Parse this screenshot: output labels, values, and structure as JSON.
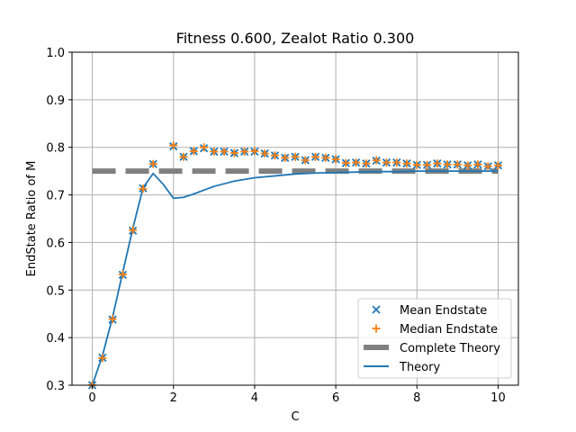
{
  "chart_data": {
    "type": "scatter",
    "title": "Fitness 0.600, Zealot Ratio 0.300",
    "xlabel": "C",
    "ylabel": "EndState Ratio of M",
    "xlim": [
      -0.5,
      10.5
    ],
    "ylim": [
      0.3,
      1.0
    ],
    "xticks": [
      0,
      2,
      4,
      6,
      8,
      10
    ],
    "yticks": [
      0.3,
      0.4,
      0.5,
      0.6,
      0.7,
      0.8,
      0.9,
      1.0
    ],
    "grid": true,
    "legend_position": "lower-right",
    "colors": {
      "mean": "#1f77b4",
      "median": "#ff7f0e",
      "complete_theory": "#808080",
      "theory": "#1f77b4"
    },
    "x": [
      0.0,
      0.25,
      0.5,
      0.75,
      1.0,
      1.25,
      1.5,
      2.0,
      2.25,
      2.5,
      2.75,
      3.0,
      3.25,
      3.5,
      3.75,
      4.0,
      4.25,
      4.5,
      4.75,
      5.0,
      5.25,
      5.5,
      5.75,
      6.0,
      6.25,
      6.5,
      6.75,
      7.0,
      7.25,
      7.5,
      7.75,
      8.0,
      8.25,
      8.5,
      8.75,
      9.0,
      9.25,
      9.5,
      9.75,
      10.0
    ],
    "series": [
      {
        "name": "Mean Endstate",
        "marker": "x",
        "values": [
          0.3,
          0.358,
          0.438,
          0.532,
          0.625,
          0.714,
          0.765,
          0.802,
          0.78,
          0.792,
          0.798,
          0.791,
          0.791,
          0.788,
          0.791,
          0.791,
          0.787,
          0.783,
          0.778,
          0.78,
          0.773,
          0.78,
          0.778,
          0.775,
          0.767,
          0.768,
          0.766,
          0.772,
          0.768,
          0.768,
          0.766,
          0.763,
          0.763,
          0.766,
          0.764,
          0.764,
          0.762,
          0.764,
          0.76,
          0.762
        ]
      },
      {
        "name": "Median Endstate",
        "marker": "+",
        "values": [
          0.3,
          0.357,
          0.439,
          0.533,
          0.626,
          0.713,
          0.765,
          0.804,
          0.78,
          0.792,
          0.8,
          0.791,
          0.791,
          0.788,
          0.791,
          0.792,
          0.787,
          0.783,
          0.778,
          0.78,
          0.773,
          0.78,
          0.778,
          0.775,
          0.767,
          0.768,
          0.766,
          0.773,
          0.768,
          0.768,
          0.766,
          0.763,
          0.763,
          0.766,
          0.764,
          0.764,
          0.762,
          0.764,
          0.76,
          0.762
        ]
      },
      {
        "name": "Complete Theory",
        "style": "dashed",
        "x": [
          0,
          10
        ],
        "values": [
          0.75,
          0.75
        ]
      },
      {
        "name": "Theory",
        "style": "solid",
        "x": [
          0.0,
          0.25,
          0.5,
          0.75,
          1.0,
          1.25,
          1.5,
          1.75,
          2.0,
          2.25,
          2.5,
          3.0,
          3.5,
          4.0,
          4.5,
          5.0,
          5.5,
          6.0,
          6.5,
          7.0,
          7.5,
          8.0,
          8.5,
          9.0,
          9.5,
          10.0
        ],
        "values": [
          0.3,
          0.362,
          0.443,
          0.537,
          0.63,
          0.715,
          0.745,
          0.722,
          0.693,
          0.695,
          0.702,
          0.718,
          0.729,
          0.736,
          0.74,
          0.744,
          0.746,
          0.747,
          0.748,
          0.749,
          0.749,
          0.75,
          0.75,
          0.75,
          0.75,
          0.75
        ]
      }
    ]
  }
}
